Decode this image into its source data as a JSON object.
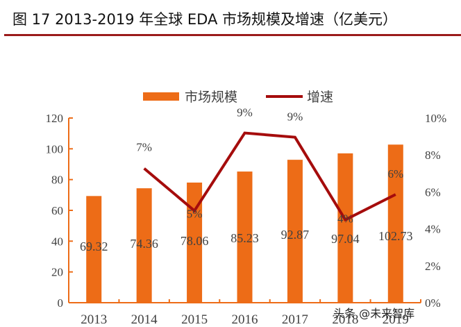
{
  "title": "图  17 2013-2019 年全球 EDA 市场规模及增速（亿美元）",
  "watermark": "头条 @未来智库",
  "colors": {
    "bar": "#ED6C17",
    "line": "#A50C0C",
    "axis": "#ED6C17",
    "title_rule": "#9B1B1B",
    "text": "#404040"
  },
  "chart_data": {
    "type": "bar",
    "title": "2013-2019 年全球 EDA 市场规模及增速（亿美元）",
    "xlabel": "",
    "ylabel": "",
    "categories": [
      "2013",
      "2014",
      "2015",
      "2016",
      "2017",
      "2018",
      "2019"
    ],
    "series": [
      {
        "name": "市场规模",
        "type": "bar",
        "axis": "left",
        "values": [
          69.32,
          74.36,
          78.06,
          85.23,
          92.87,
          97.04,
          102.73
        ],
        "labels": [
          "69.32",
          "74.36",
          "78.06",
          "85.23",
          "92.87",
          "97.04",
          "102.73"
        ]
      },
      {
        "name": "增速",
        "type": "line",
        "axis": "right",
        "values": [
          null,
          7.27,
          4.98,
          9.19,
          8.96,
          4.49,
          5.86
        ],
        "labels": [
          "",
          "7%",
          "5%",
          "9%",
          "9%",
          "4%",
          "6%"
        ]
      }
    ],
    "ylim": [
      0,
      120
    ],
    "yticks": [
      "0",
      "20",
      "40",
      "60",
      "80",
      "100",
      "120"
    ],
    "y2lim": [
      0,
      10
    ],
    "y2ticks": [
      "0%",
      "2%",
      "4%",
      "6%",
      "8%",
      "10%"
    ],
    "legend": {
      "position": "top-center",
      "entries": [
        "市场规模",
        "增速"
      ]
    },
    "grid": false
  }
}
